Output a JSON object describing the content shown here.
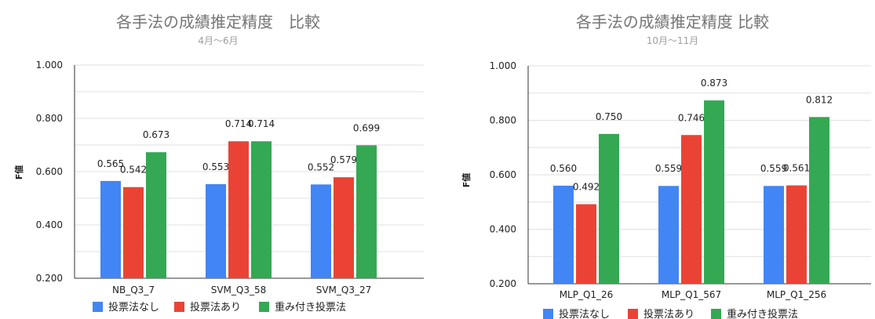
{
  "colors": {
    "s0": "#4285F4",
    "s1": "#EA4335",
    "s2": "#34A853"
  },
  "chart_data": [
    {
      "type": "bar",
      "title": "各手法の成績推定精度　比較",
      "subtitle": "4月〜6月",
      "ylabel": "F値",
      "xlabel": "",
      "ylim": [
        0.2,
        1.0
      ],
      "yticks": [
        "0.200",
        "0.400",
        "0.600",
        "0.800",
        "1.000"
      ],
      "categories": [
        "NB_Q3_7",
        "SVM_Q3_58",
        "SVM_Q3_27"
      ],
      "series": [
        {
          "name": "投票法なし",
          "values": [
            0.565,
            0.553,
            0.552
          ],
          "labels": [
            "0.565",
            "0.553",
            "0.552"
          ]
        },
        {
          "name": "投票法あり",
          "values": [
            0.542,
            0.714,
            0.579
          ],
          "labels": [
            "0.542",
            "0.714",
            "0.579"
          ]
        },
        {
          "name": "重み付き投票法",
          "values": [
            0.673,
            0.714,
            0.699
          ],
          "labels": [
            "0.673",
            "0.714",
            "0.699"
          ]
        }
      ],
      "legend": "bottom"
    },
    {
      "type": "bar",
      "title": "各手法の成績推定精度 比較",
      "subtitle": "10月〜11月",
      "ylabel": "F値",
      "xlabel": "",
      "ylim": [
        0.2,
        1.0
      ],
      "yticks": [
        "0.200",
        "0.400",
        "0.600",
        "0.800",
        "1.000"
      ],
      "categories": [
        "MLP_Q1_26",
        "MLP_Q1_567",
        "MLP_Q1_256"
      ],
      "series": [
        {
          "name": "投票法なし",
          "values": [
            0.56,
            0.559,
            0.559
          ],
          "labels": [
            "0.560",
            "0.559",
            "0.559"
          ]
        },
        {
          "name": "投票法あり",
          "values": [
            0.492,
            0.746,
            0.561
          ],
          "labels": [
            "0.492",
            "0.746",
            "0.561"
          ]
        },
        {
          "name": "重み付き投票法",
          "values": [
            0.75,
            0.873,
            0.812
          ],
          "labels": [
            "0.750",
            "0.873",
            "0.812"
          ]
        }
      ],
      "legend": "bottom"
    }
  ]
}
